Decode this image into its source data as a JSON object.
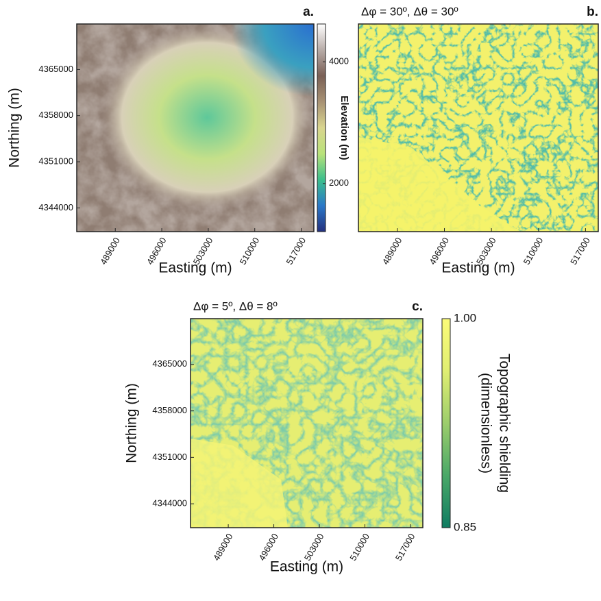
{
  "chart_data": [
    {
      "type": "map",
      "panel_label": "a.",
      "xlabel": "Easting (m)",
      "ylabel": "Northing (m)",
      "xlim": [
        483200,
        518900
      ],
      "ylim": [
        4340400,
        4371900
      ],
      "xticks": [
        489000,
        496000,
        503000,
        510000,
        517000
      ],
      "yticks": [
        4344000,
        4351000,
        4358000,
        4365000
      ],
      "colorbar": {
        "label": "Elevation (m)",
        "clim": [
          1210,
          4620
        ],
        "ticks": [
          2000,
          4000
        ],
        "colormap": [
          "#24307e",
          "#2a78c8",
          "#3cbf8c",
          "#b9e27a",
          "#d9d58f",
          "#a89274",
          "#7a6056",
          "#b8aca8",
          "#ffffff"
        ]
      }
    },
    {
      "type": "map",
      "panel_label": "b.",
      "title": "Δφ = 30º, Δθ = 30º",
      "xlabel": "Easting (m)",
      "xlim": [
        483200,
        518900
      ],
      "xticks": [
        489000,
        496000,
        503000,
        510000,
        517000
      ]
    },
    {
      "type": "map",
      "panel_label": "c.",
      "title": "Δφ = 5º, Δθ = 8º",
      "xlabel": "Easting (m)",
      "ylabel": "Northing (m)",
      "xlim": [
        483200,
        518900
      ],
      "ylim": [
        4340400,
        4371900
      ],
      "xticks": [
        489000,
        496000,
        503000,
        510000,
        517000
      ],
      "yticks": [
        4344000,
        4351000,
        4358000,
        4365000
      ],
      "colorbar": {
        "label": [
          "Topographic shielding",
          "(dimensionless)"
        ],
        "clim": [
          0.85,
          1
        ],
        "ticks": [
          0.85,
          {
            "value": 1,
            "label": "1.00"
          }
        ],
        "colormap": [
          "#0f7c62",
          "#4aa868",
          "#9ccd6c",
          "#e0ee72",
          "#fbfb78"
        ]
      }
    }
  ]
}
